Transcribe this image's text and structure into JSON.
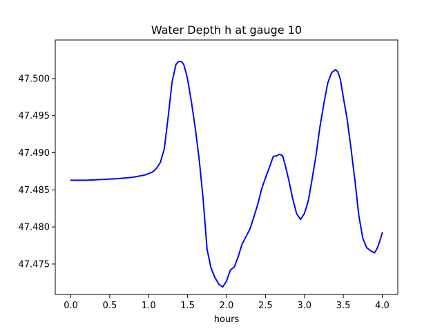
{
  "chart_data": {
    "type": "line",
    "title": "Water Depth h at gauge 10",
    "xlabel": "hours",
    "ylabel": "",
    "xlim": [
      -0.2,
      4.2
    ],
    "ylim": [
      47.4709,
      47.5052
    ],
    "grid": false,
    "legend": "none",
    "x_ticks": [
      0.0,
      0.5,
      1.0,
      1.5,
      2.0,
      2.5,
      3.0,
      3.5,
      4.0
    ],
    "x_tick_labels": [
      "0.0",
      "0.5",
      "1.0",
      "1.5",
      "2.0",
      "2.5",
      "3.0",
      "3.5",
      "4.0"
    ],
    "y_ticks": [
      47.475,
      47.48,
      47.485,
      47.49,
      47.495,
      47.5
    ],
    "y_tick_labels": [
      "47.475",
      "47.480",
      "47.485",
      "47.490",
      "47.495",
      "47.500"
    ],
    "series": [
      {
        "color": "#0000ff",
        "x": [
          0.0,
          0.2,
          0.4,
          0.6,
          0.8,
          0.95,
          1.05,
          1.1,
          1.15,
          1.2,
          1.25,
          1.3,
          1.35,
          1.38,
          1.42,
          1.45,
          1.48,
          1.5,
          1.55,
          1.6,
          1.65,
          1.7,
          1.75,
          1.8,
          1.85,
          1.9,
          1.95,
          2.0,
          2.05,
          2.1,
          2.15,
          2.2,
          2.25,
          2.3,
          2.35,
          2.4,
          2.45,
          2.5,
          2.55,
          2.6,
          2.65,
          2.68,
          2.72,
          2.75,
          2.8,
          2.85,
          2.9,
          2.95,
          3.0,
          3.05,
          3.1,
          3.15,
          3.2,
          3.25,
          3.3,
          3.35,
          3.4,
          3.43,
          3.46,
          3.5,
          3.55,
          3.6,
          3.65,
          3.7,
          3.75,
          3.8,
          3.85,
          3.9,
          3.93,
          3.96,
          4.0
        ],
        "y": [
          47.4863,
          47.4863,
          47.4864,
          47.4865,
          47.4867,
          47.487,
          47.4874,
          47.4879,
          47.4887,
          47.4905,
          47.4948,
          47.4995,
          47.5019,
          47.5023,
          47.5023,
          47.5019,
          47.5008,
          47.4999,
          47.4968,
          47.4932,
          47.489,
          47.4837,
          47.477,
          47.4745,
          47.4732,
          47.4723,
          47.4719,
          47.4727,
          47.4742,
          47.4746,
          47.476,
          47.4777,
          47.4787,
          47.4797,
          47.4813,
          47.483,
          47.4851,
          47.4866,
          47.488,
          47.4895,
          47.4896,
          47.4898,
          47.4896,
          47.4885,
          47.4863,
          47.4838,
          47.4818,
          47.481,
          47.4818,
          47.4835,
          47.4865,
          47.4897,
          47.4935,
          47.4966,
          47.4994,
          47.5008,
          47.5012,
          47.5009,
          47.5,
          47.4975,
          47.4945,
          47.4905,
          47.4862,
          47.4815,
          47.4785,
          47.4772,
          47.4768,
          47.4765,
          47.477,
          47.4778,
          47.4792
        ]
      }
    ]
  }
}
